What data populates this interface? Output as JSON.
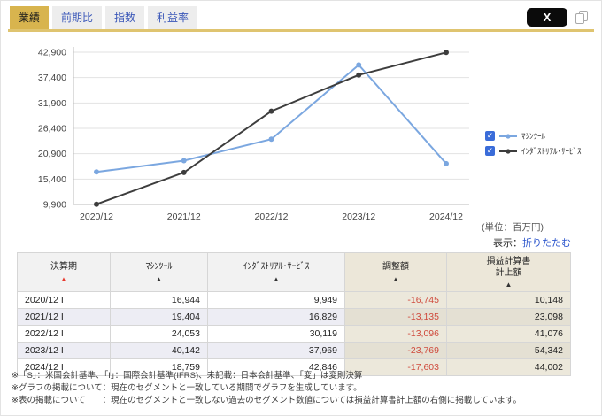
{
  "tabs": [
    {
      "label": "業績",
      "active": true
    },
    {
      "label": "前期比",
      "active": false
    },
    {
      "label": "指数",
      "active": false
    },
    {
      "label": "利益率",
      "active": false
    }
  ],
  "toolbar": {
    "share_label": "X"
  },
  "chart_data": {
    "type": "line",
    "x": [
      "2020/12",
      "2021/12",
      "2022/12",
      "2023/12",
      "2024/12"
    ],
    "series": [
      {
        "name": "ﾏｼﾝﾂｰﾙ",
        "color": "#7BA7E0",
        "values": [
          16944,
          19404,
          24053,
          40142,
          18759
        ],
        "checked": true
      },
      {
        "name": "ｲﾝﾀﾞｽﾄﾘｱﾙ･ｻｰﾋﾞｽ",
        "color": "#3D3D3D",
        "values": [
          9949,
          16829,
          30119,
          37969,
          42846
        ],
        "checked": true
      }
    ],
    "ylim": [
      9900,
      42900
    ],
    "yticks": [
      9900,
      15400,
      20900,
      26400,
      31900,
      37400,
      42900
    ],
    "grid": true,
    "legend_position": "right"
  },
  "unit_label": "(単位：百万円)",
  "display_toggle": {
    "prefix": "表示：",
    "link": "折りたたむ"
  },
  "table": {
    "columns": [
      {
        "label": "決算期",
        "arrow_color": "#e8392e",
        "beige": false
      },
      {
        "label": "ﾏｼﾝﾂｰﾙ",
        "arrow_color": "#333333",
        "beige": false
      },
      {
        "label": "ｲﾝﾀﾞｽﾄﾘｱﾙ･ｻｰﾋﾞｽ",
        "arrow_color": "#333333",
        "beige": false
      },
      {
        "label": "調整額",
        "arrow_color": "#333333",
        "beige": true
      },
      {
        "label": "損益計算書\n計上額",
        "arrow_color": "#333333",
        "beige": true
      }
    ],
    "rows": [
      [
        "2020/12 I",
        "16,944",
        "9,949",
        "-16,745",
        "10,148"
      ],
      [
        "2021/12 I",
        "19,404",
        "16,829",
        "-13,135",
        "23,098"
      ],
      [
        "2022/12 I",
        "24,053",
        "30,119",
        "-13,096",
        "41,076"
      ],
      [
        "2023/12 I",
        "40,142",
        "37,969",
        "-23,769",
        "54,342"
      ],
      [
        "2024/12 I",
        "18,759",
        "42,846",
        "-17,603",
        "44,002"
      ]
    ],
    "negative_color": "#cf4a3c"
  },
  "footnotes": [
    "※「S」：米国会計基準、「I」：国際会計基準(IFRS)、未記載：日本会計基準、「変」は変則決算",
    "※グラフの掲載について：現在のセグメントと一致している期間でグラフを生成しています。",
    "※表の掲載について　　：現在のセグメントと一致しない過去のセグメント数値については損益計算書計上額の右側に掲載しています。"
  ],
  "colors": {
    "accent_gold": "#d8b44e",
    "link_blue": "#2b55cc",
    "checkbox_blue": "#3a6cd9"
  }
}
